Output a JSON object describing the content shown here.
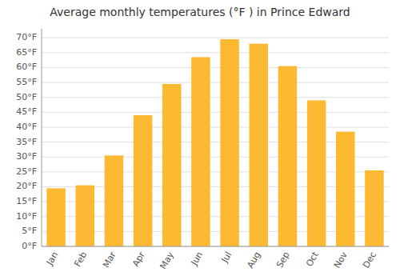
{
  "chart_data": {
    "type": "bar",
    "title": "Average monthly temperatures (°F ) in Prince Edward",
    "categories": [
      "Jan",
      "Feb",
      "Mar",
      "Apr",
      "May",
      "Jun",
      "Jul",
      "Aug",
      "Sep",
      "Oct",
      "Nov",
      "Dec"
    ],
    "values": [
      19.5,
      20.5,
      30.5,
      44.0,
      54.5,
      63.5,
      69.5,
      68.0,
      60.5,
      49.0,
      38.5,
      25.5
    ],
    "color": "#FDB931",
    "ylim": [
      0,
      73
    ],
    "yticks": [
      {
        "value": 0,
        "label": "0°F"
      },
      {
        "value": 5,
        "label": "5°F"
      },
      {
        "value": 10,
        "label": "10°F"
      },
      {
        "value": 15,
        "label": "15°F"
      },
      {
        "value": 20,
        "label": "20°F"
      },
      {
        "value": 25,
        "label": "25°F"
      },
      {
        "value": 30,
        "label": "30°F"
      },
      {
        "value": 35,
        "label": "35°F"
      },
      {
        "value": 40,
        "label": "40°F"
      },
      {
        "value": 45,
        "label": "45°F"
      },
      {
        "value": 50,
        "label": "50°F"
      },
      {
        "value": 55,
        "label": "55°F"
      },
      {
        "value": 60,
        "label": "60°F"
      },
      {
        "value": 65,
        "label": "65°F"
      },
      {
        "value": 70,
        "label": "70°F"
      }
    ],
    "grid": true
  }
}
